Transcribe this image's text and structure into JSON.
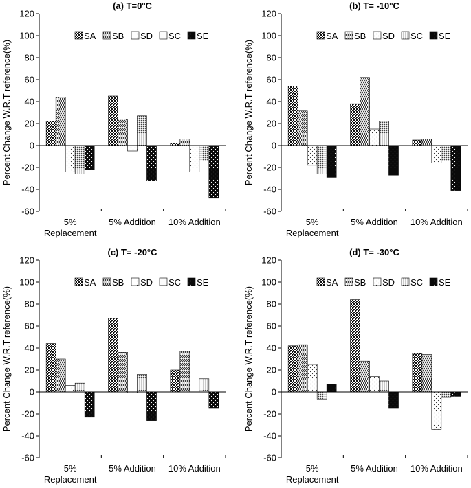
{
  "figure": {
    "panel_count": 4
  },
  "chart_data": [
    {
      "type": "bar",
      "title": "(a) T=0°C",
      "ylabel": "Percent Change W.R.T reference(%)",
      "xlabel": "",
      "ylim": [
        -60,
        120
      ],
      "ytick_step": 20,
      "grid": false,
      "legend_position": "top",
      "categories": [
        "5%\nReplacement",
        "5% Addition",
        "10% Addition"
      ],
      "series": [
        {
          "name": "SA",
          "pattern": "dense-grid",
          "values": [
            22,
            45,
            2
          ]
        },
        {
          "name": "SB",
          "pattern": "zigzag",
          "values": [
            44,
            24,
            6
          ]
        },
        {
          "name": "SD",
          "pattern": "sparse-dots",
          "values": [
            -24,
            -5,
            -24
          ]
        },
        {
          "name": "SC",
          "pattern": "medium-dots",
          "values": [
            -26,
            27,
            -14
          ]
        },
        {
          "name": "SE",
          "pattern": "black-dots",
          "values": [
            -22,
            -32,
            -48
          ]
        }
      ]
    },
    {
      "type": "bar",
      "title": "(b) T= -10°C",
      "ylabel": "Percent Change W.R.T reference(%)",
      "xlabel": "",
      "ylim": [
        -60,
        120
      ],
      "ytick_step": 20,
      "grid": false,
      "legend_position": "top",
      "categories": [
        "5%\nReplacement",
        "5% Addition",
        "10% Addition"
      ],
      "series": [
        {
          "name": "SA",
          "pattern": "dense-grid",
          "values": [
            54,
            38,
            5
          ]
        },
        {
          "name": "SB",
          "pattern": "zigzag",
          "values": [
            32,
            62,
            6
          ]
        },
        {
          "name": "SD",
          "pattern": "sparse-dots",
          "values": [
            -18,
            15,
            -16
          ]
        },
        {
          "name": "SC",
          "pattern": "medium-dots",
          "values": [
            -26,
            22,
            -14
          ]
        },
        {
          "name": "SE",
          "pattern": "black-dots",
          "values": [
            -29,
            -27,
            -41
          ]
        }
      ]
    },
    {
      "type": "bar",
      "title": "(c) T= -20°C",
      "ylabel": "Percent Change W.R.T reference(%)",
      "xlabel": "",
      "ylim": [
        -60,
        120
      ],
      "ytick_step": 20,
      "grid": false,
      "legend_position": "top",
      "categories": [
        "5%\nReplacement",
        "5% Addition",
        "10% Addition"
      ],
      "series": [
        {
          "name": "SA",
          "pattern": "dense-grid",
          "values": [
            44,
            67,
            20
          ]
        },
        {
          "name": "SB",
          "pattern": "zigzag",
          "values": [
            30,
            36,
            37
          ]
        },
        {
          "name": "SD",
          "pattern": "sparse-dots",
          "values": [
            6,
            -1,
            1
          ]
        },
        {
          "name": "SC",
          "pattern": "medium-dots",
          "values": [
            8,
            16,
            12
          ]
        },
        {
          "name": "SE",
          "pattern": "black-dots",
          "values": [
            -23,
            -26,
            -15
          ]
        }
      ]
    },
    {
      "type": "bar",
      "title": "(d) T= -30°C",
      "ylabel": "Percent Change W.R.T reference(%)",
      "xlabel": "",
      "ylim": [
        -60,
        120
      ],
      "ytick_step": 20,
      "grid": false,
      "legend_position": "top",
      "categories": [
        "5%\nReplacement",
        "5% Addition",
        "10% Addition"
      ],
      "series": [
        {
          "name": "SA",
          "pattern": "dense-grid",
          "values": [
            42,
            84,
            35
          ]
        },
        {
          "name": "SB",
          "pattern": "zigzag",
          "values": [
            43,
            28,
            34
          ]
        },
        {
          "name": "SD",
          "pattern": "sparse-dots",
          "values": [
            25,
            14,
            -34
          ]
        },
        {
          "name": "SC",
          "pattern": "medium-dots",
          "values": [
            -7,
            10,
            -5
          ]
        },
        {
          "name": "SE",
          "pattern": "black-dots",
          "values": [
            7,
            -15,
            -4
          ]
        }
      ]
    }
  ]
}
